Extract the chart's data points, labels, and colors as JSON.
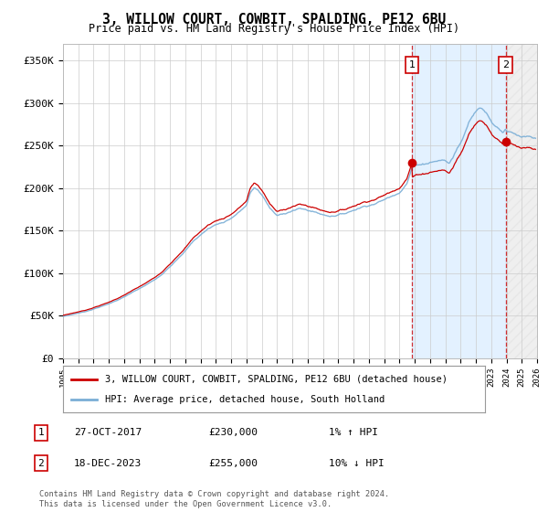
{
  "title": "3, WILLOW COURT, COWBIT, SPALDING, PE12 6BU",
  "subtitle": "Price paid vs. HM Land Registry's House Price Index (HPI)",
  "legend_line1": "3, WILLOW COURT, COWBIT, SPALDING, PE12 6BU (detached house)",
  "legend_line2": "HPI: Average price, detached house, South Holland",
  "transaction1_date": "27-OCT-2017",
  "transaction1_price": 230000,
  "transaction1_label": "1% ↑ HPI",
  "transaction2_date": "18-DEC-2023",
  "transaction2_price": 255000,
  "transaction2_label": "10% ↓ HPI",
  "footer": "Contains HM Land Registry data © Crown copyright and database right 2024.\nThis data is licensed under the Open Government Licence v3.0.",
  "ylim": [
    0,
    370000
  ],
  "yticks": [
    0,
    50000,
    100000,
    150000,
    200000,
    250000,
    300000,
    350000
  ],
  "ytick_labels": [
    "£0",
    "£50K",
    "£100K",
    "£150K",
    "£200K",
    "£250K",
    "£300K",
    "£350K"
  ],
  "grid_color": "#cccccc",
  "bg_color": "#ffffff",
  "plot_bg": "#ffffff",
  "red_color": "#cc0000",
  "blue_color": "#7aaed6",
  "shade_color": "#ddeeff",
  "transaction1_x": 2017.82,
  "transaction2_x": 2023.96,
  "xlim_left": 1995,
  "xlim_right": 2026
}
